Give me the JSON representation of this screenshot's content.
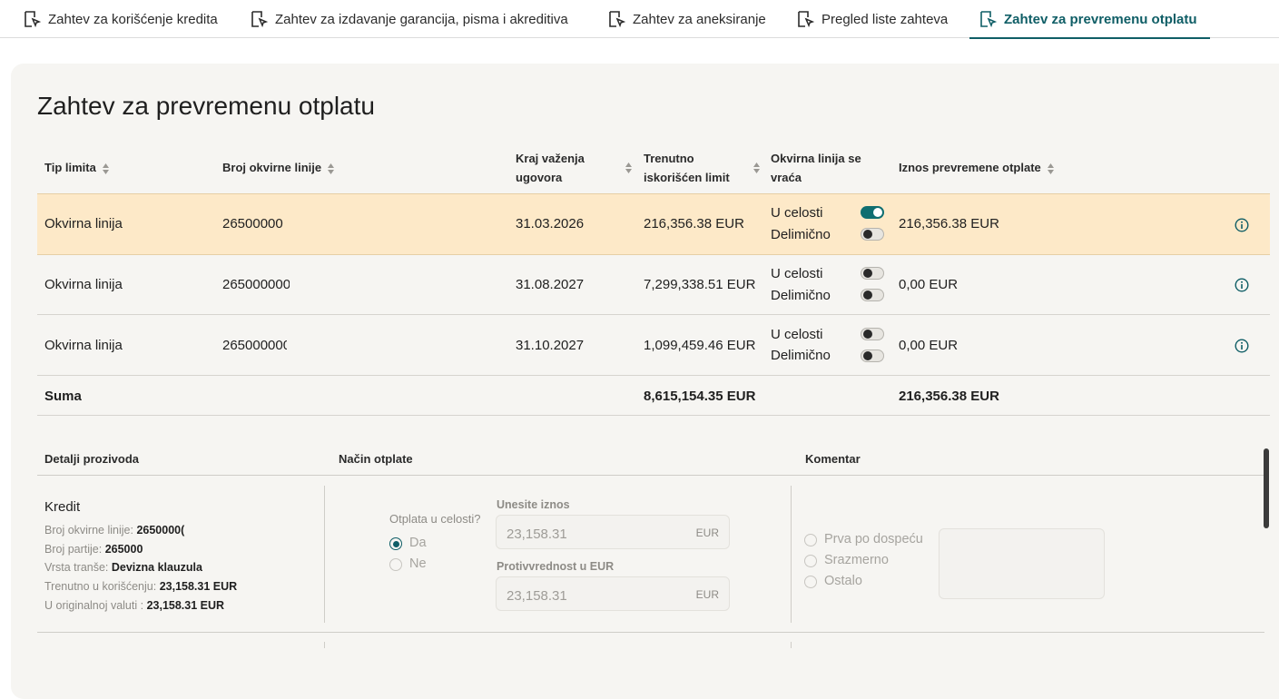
{
  "tabs": [
    {
      "label": "Zahtev za korišćenje kredita",
      "active": false
    },
    {
      "label": "Zahtev za izdavanje garancija, pisma i akreditiva",
      "active": false
    },
    {
      "label": "Zahtev za aneksiranje",
      "active": false
    },
    {
      "label": "Pregled liste zahteva",
      "active": false
    },
    {
      "label": "Zahtev za prevremenu otplatu",
      "active": true
    }
  ],
  "page_title": "Zahtev za prevremenu otplatu",
  "table": {
    "headers": {
      "tip_limita": "Tip limita",
      "broj_okvirne_linije": "Broj okvirne linije",
      "kraj_vazenja_1": "Kraj važenja",
      "kraj_vazenja_2": "ugovora",
      "trenutno_1": "Trenutno",
      "trenutno_2": "iskorišćen limit",
      "vraca_1": "Okvirna linija se",
      "vraca_2": "vraća",
      "iznos": "Iznos prevremene otplate"
    },
    "rows": [
      {
        "tip": "Okvirna linija",
        "broj": "26500000",
        "kraj": "31.03.2026",
        "trenutno": "216,356.38 EUR",
        "u_celosti": "U celosti",
        "delimicno": "Delimično",
        "u_celosti_on": true,
        "delimicno_on": false,
        "iznos": "216,356.38 EUR",
        "highlighted": true
      },
      {
        "tip": "Okvirna linija",
        "broj": "265000000",
        "kraj": "31.08.2027",
        "trenutno": "7,299,338.51 EUR",
        "u_celosti": "U celosti",
        "delimicno": "Delimično",
        "u_celosti_on": false,
        "delimicno_on": false,
        "iznos": "0,00 EUR",
        "highlighted": false
      },
      {
        "tip": "Okvirna linija",
        "broj": "265000000",
        "kraj": "31.10.2027",
        "trenutno": "1,099,459.46 EUR",
        "u_celosti": "U celosti",
        "delimicno": "Delimično",
        "u_celosti_on": false,
        "delimicno_on": false,
        "iznos": "0,00 EUR",
        "highlighted": false
      }
    ],
    "sum": {
      "label": "Suma",
      "trenutno": "8,615,154.35 EUR",
      "iznos": "216,356.38 EUR"
    }
  },
  "details": {
    "headers": {
      "detalji": "Detalji prozivoda",
      "nacin": "Način otplate",
      "komentar": "Komentar"
    },
    "product_title": "Kredit",
    "fields": [
      {
        "label": "Broj okvirne linije: ",
        "value": "2650000("
      },
      {
        "label": "Broj partije: ",
        "value": "265000"
      },
      {
        "label": "Vrsta tranše: ",
        "value": "Devizna klauzula"
      },
      {
        "label": "Trenutno u korišćenju: ",
        "value": "23,158.31 EUR"
      },
      {
        "label": "U originalnoj valuti : ",
        "value": "23,158.31 EUR"
      }
    ],
    "otplata_question": "Otplata u celosti?",
    "otplata_options": [
      {
        "label": "Da",
        "selected": true
      },
      {
        "label": "Ne",
        "selected": false
      }
    ],
    "amount_label": "Unesite iznos",
    "amount_value": "23,158.31",
    "amount_currency": "EUR",
    "counter_label": "Protivvrednost u EUR",
    "counter_value": "23,158.31",
    "counter_currency": "EUR",
    "comment_options": [
      {
        "label": "Prva po dospeću",
        "selected": false
      },
      {
        "label": "Srazmerno",
        "selected": false
      },
      {
        "label": "Ostalo",
        "selected": false
      }
    ]
  },
  "colors": {
    "accent": "#0f5e66",
    "highlight_row": "#fde9c8",
    "panel_bg": "#f6f5f2"
  }
}
